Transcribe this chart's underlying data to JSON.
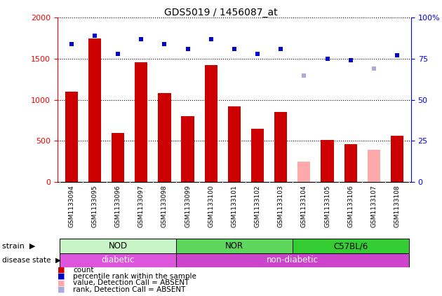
{
  "title": "GDS5019 / 1456087_at",
  "samples": [
    "GSM1133094",
    "GSM1133095",
    "GSM1133096",
    "GSM1133097",
    "GSM1133098",
    "GSM1133099",
    "GSM1133100",
    "GSM1133101",
    "GSM1133102",
    "GSM1133103",
    "GSM1133104",
    "GSM1133105",
    "GSM1133106",
    "GSM1133107",
    "GSM1133108"
  ],
  "counts": [
    1100,
    1750,
    600,
    1460,
    1080,
    800,
    1420,
    920,
    650,
    850,
    null,
    510,
    460,
    null,
    560
  ],
  "counts_absent": [
    null,
    null,
    null,
    null,
    null,
    null,
    null,
    null,
    null,
    null,
    250,
    null,
    null,
    390,
    null
  ],
  "percentile_ranks": [
    84,
    89,
    78,
    87,
    84,
    81,
    87,
    81,
    78,
    81,
    null,
    75,
    74,
    null,
    77
  ],
  "percentile_ranks_absent": [
    null,
    null,
    null,
    null,
    null,
    null,
    null,
    null,
    null,
    null,
    65,
    null,
    null,
    69,
    null
  ],
  "strains": [
    {
      "label": "NOD",
      "start": 0,
      "end": 4,
      "color": "#c8f5c8"
    },
    {
      "label": "NOR",
      "start": 5,
      "end": 9,
      "color": "#5cd65c"
    },
    {
      "label": "C57BL/6",
      "start": 10,
      "end": 14,
      "color": "#33cc33"
    }
  ],
  "disease_states": [
    {
      "label": "diabetic",
      "start": 0,
      "end": 4,
      "color": "#dd55dd"
    },
    {
      "label": "non-diabetic",
      "start": 5,
      "end": 14,
      "color": "#cc44cc"
    }
  ],
  "ylim_left": [
    0,
    2000
  ],
  "ylim_right": [
    0,
    100
  ],
  "yticks_left": [
    0,
    500,
    1000,
    1500,
    2000
  ],
  "yticks_right": [
    0,
    25,
    50,
    75,
    100
  ],
  "bar_color": "#cc0000",
  "bar_absent_color": "#ffaaaa",
  "dot_color": "#0000cc",
  "dot_absent_color": "#aaaadd",
  "bar_width": 0.55,
  "legend_items": [
    {
      "label": "count",
      "color": "#cc0000"
    },
    {
      "label": "percentile rank within the sample",
      "color": "#0000cc"
    },
    {
      "label": "value, Detection Call = ABSENT",
      "color": "#ffaaaa"
    },
    {
      "label": "rank, Detection Call = ABSENT",
      "color": "#aaaadd"
    }
  ]
}
